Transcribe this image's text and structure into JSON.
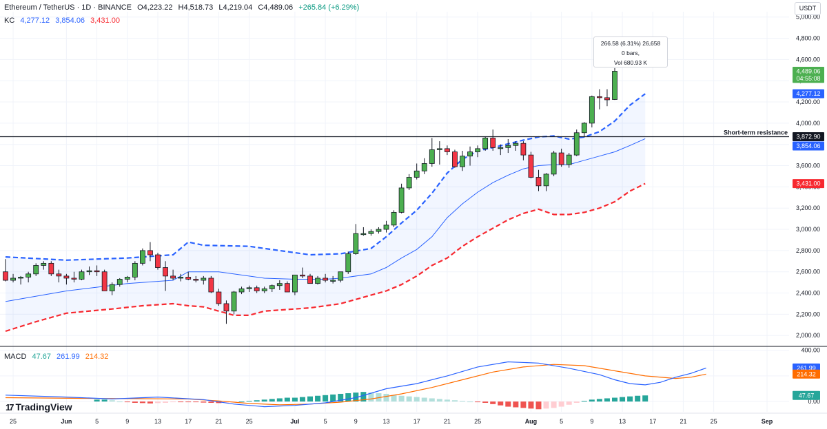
{
  "header": {
    "symbol": "Ethereum / TetherUS · 1D · BINANCE",
    "open": "O4,223.22",
    "high": "H4,518.73",
    "low": "L4,219.04",
    "close": "C4,489.06",
    "change": "+265.84 (+6.29%)"
  },
  "kc": {
    "label": "KC",
    "upper": "4,277.12",
    "middle": "3,854.06",
    "lower": "3,431.00"
  },
  "macd_header": {
    "label": "MACD",
    "hist": "47.67",
    "macd": "261.99",
    "signal": "214.32"
  },
  "unit": "USDT",
  "tooltip": {
    "line1": "266.58 (6.31%) 26,658",
    "line2": "0 bars,",
    "line3": "Vol 680.93 K"
  },
  "resistance_label": "Short-term resistance",
  "logo": "TradingView",
  "colors": {
    "up": "#4caf50",
    "down": "#f23645",
    "kc_upper": "#2962ff",
    "kc_middle": "#2962ff",
    "kc_lower": "#f7282f",
    "macd": "#2962ff",
    "signal": "#ff6d00",
    "hist_pos": "#26a69a",
    "hist_pos_light": "#b2dfdb",
    "hist_neg": "#ef5350",
    "hist_neg_light": "#ffcdd2"
  },
  "chart_data": {
    "type": "candlestick",
    "title": "Ethereum / TetherUS · 1D · BINANCE",
    "y_ticks": [
      "5,000.00",
      "4,800.00",
      "4,600.00",
      "4,400.00",
      "4,200.00",
      "4,000.00",
      "3,800.00",
      "3,600.00",
      "3,400.00",
      "3,200.00",
      "3,000.00",
      "2,800.00",
      "2,600.00",
      "2,400.00",
      "2,200.00",
      "2,000.00"
    ],
    "ylim": [
      1930,
      5050
    ],
    "x_labels": [
      "25",
      "Jun",
      "5",
      "9",
      "13",
      "17",
      "21",
      "25",
      "Jul",
      "5",
      "9",
      "13",
      "17",
      "21",
      "25",
      "Aug",
      "5",
      "9",
      "13",
      "17",
      "21",
      "25",
      "Sep"
    ],
    "x_label_days": [
      -6,
      1,
      5,
      9,
      13,
      17,
      21,
      25,
      31,
      35,
      39,
      43,
      47,
      51,
      55,
      62,
      66,
      70,
      74,
      78,
      82,
      86,
      93
    ],
    "first_candle_day": -7,
    "candles": [
      [
        2600,
        2720,
        2510,
        2520
      ],
      [
        2520,
        2580,
        2500,
        2540
      ],
      [
        2540,
        2560,
        2480,
        2550
      ],
      [
        2550,
        2600,
        2500,
        2580
      ],
      [
        2580,
        2680,
        2560,
        2660
      ],
      [
        2660,
        2700,
        2620,
        2680
      ],
      [
        2680,
        2700,
        2560,
        2580
      ],
      [
        2580,
        2620,
        2500,
        2560
      ],
      [
        2560,
        2580,
        2480,
        2540
      ],
      [
        2540,
        2600,
        2500,
        2530
      ],
      [
        2530,
        2620,
        2520,
        2600
      ],
      [
        2600,
        2650,
        2570,
        2610
      ],
      [
        2610,
        2660,
        2560,
        2600
      ],
      [
        2600,
        2620,
        2420,
        2420
      ],
      [
        2420,
        2500,
        2380,
        2480
      ],
      [
        2480,
        2540,
        2460,
        2530
      ],
      [
        2530,
        2560,
        2500,
        2550
      ],
      [
        2550,
        2700,
        2520,
        2680
      ],
      [
        2680,
        2820,
        2660,
        2800
      ],
      [
        2800,
        2880,
        2700,
        2760
      ],
      [
        2760,
        2780,
        2620,
        2640
      ],
      [
        2640,
        2700,
        2420,
        2560
      ],
      [
        2560,
        2620,
        2520,
        2540
      ],
      [
        2540,
        2580,
        2510,
        2550
      ],
      [
        2550,
        2600,
        2520,
        2530
      ],
      [
        2530,
        2560,
        2500,
        2520
      ],
      [
        2520,
        2560,
        2480,
        2540
      ],
      [
        2540,
        2560,
        2400,
        2410
      ],
      [
        2410,
        2440,
        2280,
        2300
      ],
      [
        2300,
        2330,
        2110,
        2230
      ],
      [
        2230,
        2420,
        2200,
        2410
      ],
      [
        2410,
        2460,
        2390,
        2440
      ],
      [
        2440,
        2470,
        2410,
        2450
      ],
      [
        2450,
        2470,
        2400,
        2420
      ],
      [
        2420,
        2460,
        2400,
        2440
      ],
      [
        2440,
        2480,
        2410,
        2470
      ],
      [
        2470,
        2520,
        2430,
        2490
      ],
      [
        2490,
        2510,
        2420,
        2410
      ],
      [
        2410,
        2560,
        2380,
        2570
      ],
      [
        2570,
        2640,
        2540,
        2560
      ],
      [
        2560,
        2580,
        2490,
        2490
      ],
      [
        2490,
        2560,
        2480,
        2540
      ],
      [
        2540,
        2580,
        2500,
        2520
      ],
      [
        2520,
        2560,
        2490,
        2520
      ],
      [
        2520,
        2600,
        2500,
        2600
      ],
      [
        2600,
        2790,
        2580,
        2770
      ],
      [
        2770,
        3050,
        2760,
        2960
      ],
      [
        2960,
        3020,
        2940,
        2960
      ],
      [
        2960,
        3000,
        2940,
        2980
      ],
      [
        2980,
        3020,
        2960,
        3000
      ],
      [
        3000,
        3080,
        2970,
        3040
      ],
      [
        3040,
        3180,
        3020,
        3160
      ],
      [
        3160,
        3430,
        3150,
        3390
      ],
      [
        3390,
        3520,
        3370,
        3490
      ],
      [
        3490,
        3620,
        3470,
        3550
      ],
      [
        3550,
        3670,
        3520,
        3620
      ],
      [
        3620,
        3860,
        3590,
        3750
      ],
      [
        3750,
        3830,
        3610,
        3760
      ],
      [
        3760,
        3790,
        3700,
        3730
      ],
      [
        3730,
        3750,
        3580,
        3590
      ],
      [
        3590,
        3740,
        3550,
        3690
      ],
      [
        3690,
        3780,
        3600,
        3730
      ],
      [
        3730,
        3790,
        3680,
        3760
      ],
      [
        3760,
        3870,
        3740,
        3860
      ],
      [
        3860,
        3940,
        3740,
        3770
      ],
      [
        3770,
        3800,
        3700,
        3770
      ],
      [
        3770,
        3850,
        3720,
        3790
      ],
      [
        3790,
        3830,
        3740,
        3810
      ],
      [
        3810,
        3830,
        3650,
        3700
      ],
      [
        3700,
        3730,
        3480,
        3490
      ],
      [
        3490,
        3560,
        3360,
        3410
      ],
      [
        3410,
        3530,
        3360,
        3520
      ],
      [
        3520,
        3740,
        3500,
        3720
      ],
      [
        3720,
        3760,
        3590,
        3610
      ],
      [
        3610,
        3720,
        3580,
        3700
      ],
      [
        3700,
        3940,
        3690,
        3910
      ],
      [
        3910,
        4010,
        3870,
        4000
      ],
      [
        4000,
        4260,
        3960,
        4250
      ],
      [
        4250,
        4320,
        4130,
        4240
      ],
      [
        4240,
        4320,
        4160,
        4220
      ],
      [
        4223.22,
        4518.73,
        4219.04,
        4489.06
      ]
    ],
    "kc_upper": [
      [
        0,
        2740
      ],
      [
        8,
        2710
      ],
      [
        16,
        2730
      ],
      [
        22,
        2760
      ],
      [
        24,
        2880
      ],
      [
        26,
        2850
      ],
      [
        32,
        2840
      ],
      [
        36,
        2800
      ],
      [
        40,
        2760
      ],
      [
        44,
        2770
      ],
      [
        48,
        2820
      ],
      [
        50,
        2930
      ],
      [
        52,
        3060
      ],
      [
        54,
        3180
      ],
      [
        56,
        3340
      ],
      [
        58,
        3530
      ],
      [
        60,
        3660
      ],
      [
        62,
        3740
      ],
      [
        64,
        3770
      ],
      [
        68,
        3840
      ],
      [
        70,
        3870
      ],
      [
        72,
        3880
      ],
      [
        74,
        3850
      ],
      [
        76,
        3870
      ],
      [
        78,
        3920
      ],
      [
        80,
        4020
      ],
      [
        82,
        4170
      ],
      [
        84,
        4277.12
      ]
    ],
    "kc_middle": [
      [
        0,
        2320
      ],
      [
        8,
        2420
      ],
      [
        16,
        2490
      ],
      [
        22,
        2520
      ],
      [
        24,
        2600
      ],
      [
        28,
        2600
      ],
      [
        34,
        2540
      ],
      [
        38,
        2530
      ],
      [
        42,
        2530
      ],
      [
        44,
        2540
      ],
      [
        48,
        2580
      ],
      [
        50,
        2640
      ],
      [
        52,
        2730
      ],
      [
        54,
        2810
      ],
      [
        56,
        2930
      ],
      [
        58,
        3110
      ],
      [
        60,
        3240
      ],
      [
        62,
        3350
      ],
      [
        64,
        3440
      ],
      [
        66,
        3510
      ],
      [
        68,
        3570
      ],
      [
        70,
        3600
      ],
      [
        72,
        3610
      ],
      [
        74,
        3610
      ],
      [
        76,
        3650
      ],
      [
        78,
        3690
      ],
      [
        80,
        3730
      ],
      [
        82,
        3790
      ],
      [
        84,
        3854.06
      ]
    ],
    "kc_lower": [
      [
        0,
        2040
      ],
      [
        4,
        2130
      ],
      [
        8,
        2210
      ],
      [
        14,
        2250
      ],
      [
        18,
        2280
      ],
      [
        22,
        2300
      ],
      [
        24,
        2280
      ],
      [
        26,
        2270
      ],
      [
        28,
        2230
      ],
      [
        30,
        2190
      ],
      [
        32,
        2190
      ],
      [
        34,
        2230
      ],
      [
        40,
        2260
      ],
      [
        44,
        2300
      ],
      [
        48,
        2380
      ],
      [
        50,
        2420
      ],
      [
        52,
        2480
      ],
      [
        54,
        2560
      ],
      [
        56,
        2660
      ],
      [
        58,
        2730
      ],
      [
        60,
        2840
      ],
      [
        62,
        2930
      ],
      [
        64,
        3010
      ],
      [
        66,
        3090
      ],
      [
        68,
        3150
      ],
      [
        70,
        3190
      ],
      [
        72,
        3140
      ],
      [
        74,
        3140
      ],
      [
        76,
        3160
      ],
      [
        78,
        3200
      ],
      [
        80,
        3260
      ],
      [
        82,
        3360
      ],
      [
        84,
        3431.0
      ]
    ],
    "resistance_level": 3872.9,
    "resistance_label": "Short-term resistance",
    "price_labels": [
      {
        "value": "4,489.06",
        "y": 4489.06,
        "color": "#4caf50"
      },
      {
        "value": "04:55:08",
        "y": 4422,
        "color": "#4caf50"
      },
      {
        "value": "4,277.12",
        "y": 4277.12,
        "color": "#2962ff"
      },
      {
        "value": "3,872.90",
        "y": 3872.9,
        "color": "#131722"
      },
      {
        "value": "3,854.06",
        "y": 3785,
        "color": "#2962ff"
      },
      {
        "value": "3,431.00",
        "y": 3431.0,
        "color": "#f7282f"
      }
    ],
    "macd": {
      "y_ticks": [
        "400.00",
        "200.00",
        "0.00"
      ],
      "ylim": [
        -80,
        420
      ],
      "macd_line": [
        [
          0,
          50
        ],
        [
          8,
          35
        ],
        [
          14,
          20
        ],
        [
          20,
          35
        ],
        [
          26,
          15
        ],
        [
          30,
          -20
        ],
        [
          34,
          -40
        ],
        [
          38,
          -30
        ],
        [
          42,
          -10
        ],
        [
          46,
          30
        ],
        [
          50,
          100
        ],
        [
          54,
          140
        ],
        [
          58,
          200
        ],
        [
          62,
          270
        ],
        [
          66,
          310
        ],
        [
          70,
          300
        ],
        [
          74,
          260
        ],
        [
          78,
          210
        ],
        [
          80,
          170
        ],
        [
          82,
          140
        ],
        [
          84,
          130
        ],
        [
          86,
          150
        ],
        [
          88,
          190
        ],
        [
          90,
          220
        ],
        [
          92,
          261.99
        ]
      ],
      "signal_line": [
        [
          0,
          30
        ],
        [
          10,
          25
        ],
        [
          18,
          22
        ],
        [
          24,
          20
        ],
        [
          28,
          5
        ],
        [
          32,
          -15
        ],
        [
          36,
          -25
        ],
        [
          40,
          -20
        ],
        [
          44,
          -5
        ],
        [
          48,
          20
        ],
        [
          52,
          60
        ],
        [
          56,
          110
        ],
        [
          60,
          170
        ],
        [
          64,
          230
        ],
        [
          68,
          270
        ],
        [
          72,
          290
        ],
        [
          76,
          280
        ],
        [
          80,
          240
        ],
        [
          84,
          200
        ],
        [
          88,
          180
        ],
        [
          90,
          190
        ],
        [
          92,
          214.32
        ]
      ],
      "histogram": [
        15,
        15,
        10,
        0,
        -5,
        -10,
        -12,
        -15,
        -12,
        -10,
        -5,
        -5,
        -5,
        -5,
        -8,
        -10,
        -12,
        -10,
        -5,
        0,
        5,
        10,
        15,
        20,
        25,
        30,
        30,
        35,
        40,
        45,
        50,
        55,
        60,
        65,
        70,
        75,
        70,
        65,
        60,
        50,
        45,
        40,
        35,
        30,
        25,
        20,
        15,
        10,
        5,
        0,
        -5,
        -10,
        -20,
        -30,
        -40,
        -45,
        -50,
        -55,
        -60,
        -55,
        -50,
        -40,
        -25,
        -10,
        5,
        15,
        20,
        25,
        30,
        35,
        40,
        45,
        47.67
      ],
      "hist_start_x": 0,
      "labels": [
        {
          "value": "261.99",
          "y": 261.99,
          "color": "#2962ff"
        },
        {
          "value": "214.32",
          "y": 214.32,
          "color": "#ff6d00"
        },
        {
          "value": "47.67",
          "y": 47.67,
          "color": "#26a69a"
        }
      ]
    }
  }
}
